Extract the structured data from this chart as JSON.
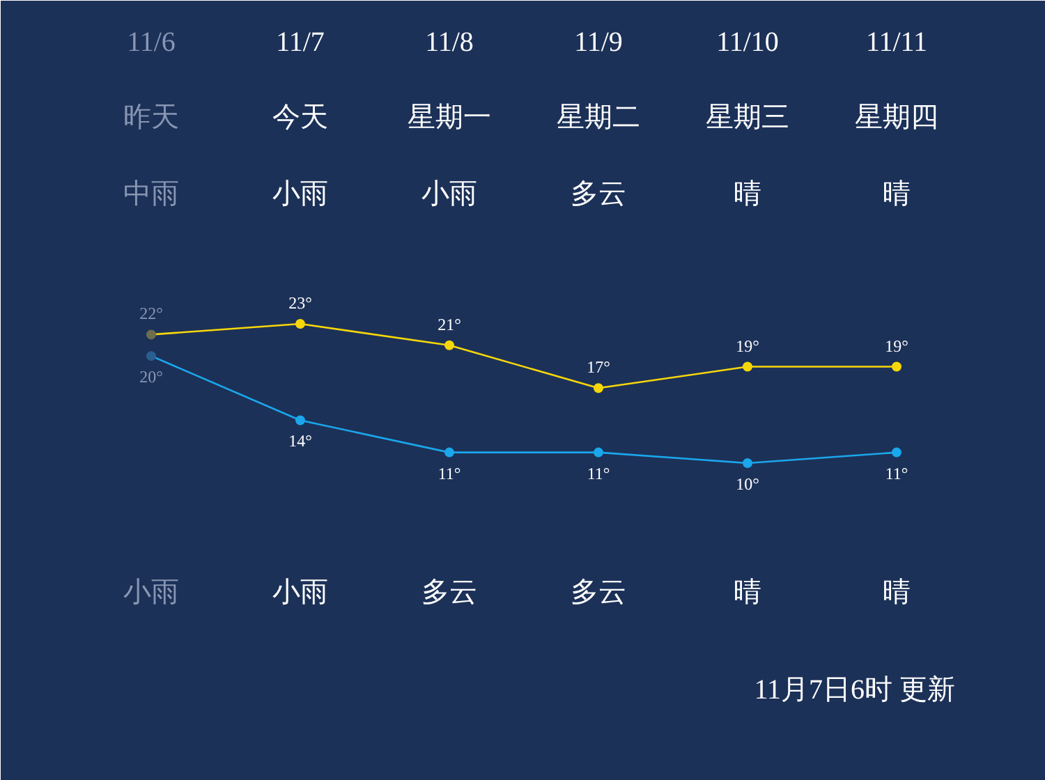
{
  "chart_data": {
    "type": "line",
    "categories": [
      "11/6",
      "11/7",
      "11/8",
      "11/9",
      "11/10",
      "11/11"
    ],
    "series": [
      {
        "color": "#f7d70a",
        "colors": [
          "#6b6f4f",
          "#f7d70a",
          "#f7d70a",
          "#f7d70a",
          "#f7d70a",
          "#f7d70a"
        ],
        "values": [
          22,
          23,
          21,
          17,
          19,
          19
        ],
        "value_labels": [
          "22°",
          "23°",
          "21°",
          "17°",
          "19°",
          "19°"
        ]
      },
      {
        "color": "#1aa7ec",
        "colors": [
          "#2a5f8f",
          "#1aa7ec",
          "#1aa7ec",
          "#1aa7ec",
          "#1aa7ec",
          "#1aa7ec"
        ],
        "values": [
          20,
          14,
          11,
          11,
          10,
          11
        ],
        "value_labels": [
          "20°",
          "14°",
          "11°",
          "11°",
          "10°",
          "11°"
        ]
      }
    ],
    "annotations": [
      "昨天",
      "今天",
      "星期一",
      "星期二",
      "星期三",
      "星期四",
      "中雨",
      "小雨",
      "小雨",
      "多云",
      "晴",
      "晴",
      "小雨",
      "小雨",
      "多云",
      "多云",
      "晴",
      "晴",
      "11月7日6时 更新"
    ],
    "marker": "circle",
    "line_style": "solid",
    "grid": false
  }
}
